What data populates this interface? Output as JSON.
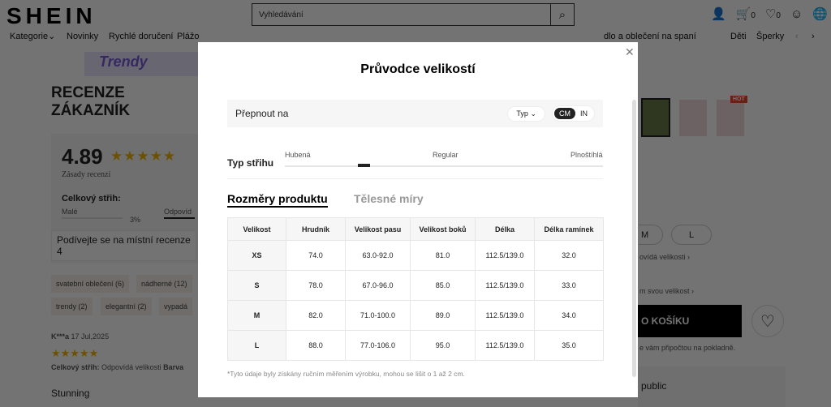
{
  "header": {
    "logo": "SHEIN",
    "search_placeholder": "Vyhledávání",
    "cart_count": "0",
    "wishlist_count": "0"
  },
  "nav": [
    "Kategorie",
    "Novinky",
    "Rychlé doručení",
    "Plážo",
    "dlo a oblečení na spaní",
    "Děti",
    "Šperky"
  ],
  "page": {
    "banner": "Trendy",
    "reviews_title": "RECENZE ZÁKAZNÍK",
    "score": "4.89",
    "policy": "Zásady recenzí",
    "fit_title": "Celkový střih:",
    "fit_small": "Malé",
    "fit_small_pct": "3%",
    "fit_true": "Odpovíd",
    "local_reviews": "Podívejte se na místní recenze 4",
    "tags": [
      "svatební oblečení (6)",
      "nádherné (12)",
      "trendy (2)",
      "elegantní (2)",
      "vypadá"
    ],
    "reviewer": "K***a",
    "review_date": "17 Jul,2025",
    "review_fit_label": "Celkový střih:",
    "review_fit_value": "Odpovídá velikosti",
    "review_color": "Barva",
    "review_text": "Stunning",
    "sizes": [
      "M",
      "L"
    ],
    "size_fit_link": "ovídá velikosti",
    "find_size": "m svou velikost",
    "add_to_cart": "O KOŠÍKU",
    "tax_note": "e vám připočtou na pokladně.",
    "country": "public",
    "hot_badge": "HOT"
  },
  "modal": {
    "title": "Průvodce velikostí",
    "switch_label": "Přepnout na",
    "type_select": "Typ",
    "units": [
      "CM",
      "IN"
    ],
    "active_unit": "CM",
    "fit_label": "Typ střihu",
    "fit_scale": [
      "Hubená",
      "Regular",
      "Plnoštíhlá"
    ],
    "fit_value": "Hubená",
    "tabs": [
      "Rozměry produktu",
      "Tělesné míry"
    ],
    "active_tab": "Rozměry produktu",
    "table": {
      "headers": [
        "Velikost",
        "Hrudník",
        "Velikost pasu",
        "Velikost boků",
        "Délka",
        "Délka ramínek"
      ],
      "rows": [
        [
          "XS",
          "74.0",
          "63.0-92.0",
          "81.0",
          "112.5/139.0",
          "32.0"
        ],
        [
          "S",
          "78.0",
          "67.0-96.0",
          "85.0",
          "112.5/139.0",
          "33.0"
        ],
        [
          "M",
          "82.0",
          "71.0-100.0",
          "89.0",
          "112.5/139.0",
          "34.0"
        ],
        [
          "L",
          "88.0",
          "77.0-106.0",
          "95.0",
          "112.5/139.0",
          "35.0"
        ]
      ]
    },
    "note": "*Tyto údaje byly získány ručním měřením výrobku, mohou se lišit o 1 až 2 cm."
  }
}
